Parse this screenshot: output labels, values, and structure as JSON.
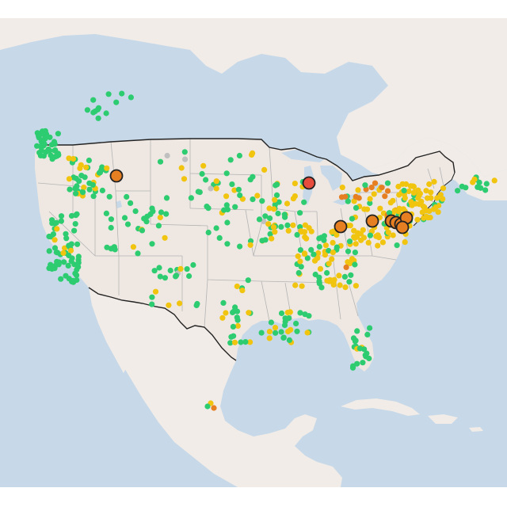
{
  "colors": {
    "water": "#c7d9e8",
    "land": "#efe8e2",
    "land_outside": "#f1ece8",
    "country_border": "#222222",
    "state_border": "#b4b4b4",
    "good": "#2ecc71",
    "moderate": "#f1c40f",
    "sensitive": "#e67e22",
    "unhealthy": "#e74c3c",
    "no_data": "#c0c0c0",
    "marker_stroke": "#222222"
  },
  "legend": []
}
